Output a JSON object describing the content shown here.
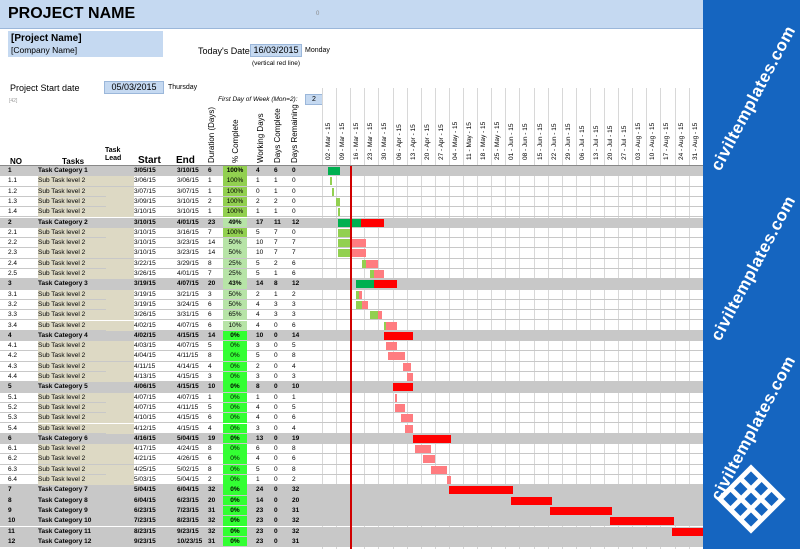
{
  "header": {
    "title": "PROJECT NAME",
    "zero": "0"
  },
  "project": {
    "name": "[Project Name]",
    "company": "[Company Name]"
  },
  "today": {
    "label": "Today's Date:",
    "value": "16/03/2015",
    "day": "Monday",
    "note": "(vertical red line)"
  },
  "start": {
    "label": "Project Start date",
    "value": "05/03/2015",
    "day": "Thursday",
    "note": "[42]"
  },
  "week": {
    "label": "First Day of Week (Mon=2):",
    "value": "2"
  },
  "columns": {
    "no": "NO",
    "tasks": "Tasks",
    "lead": "Task Lead",
    "start": "Start",
    "end": "End",
    "duration": "Duration (Days)",
    "complete": "% Complete",
    "working": "Working Days",
    "dcomplete": "Days Complete",
    "dremaining": "Days Remaining"
  },
  "dates": [
    "02 - Mar - 15",
    "09 - Mar - 15",
    "16 - Mar - 15",
    "23 - Mar - 15",
    "30 - Mar - 15",
    "06 - Apr - 15",
    "13 - Apr - 15",
    "20 - Apr - 15",
    "27 - Apr - 15",
    "04 - May - 15",
    "11 - May - 15",
    "18 - May - 15",
    "25 - May - 15",
    "01 - Jun - 15",
    "08 - Jun - 15",
    "15 - Jun - 15",
    "22 - Jun - 15",
    "29 - Jun - 15",
    "06 - Jul - 15",
    "13 - Jul - 15",
    "20 - Jul - 15",
    "27 - Jul - 15",
    "03 - Aug - 15",
    "10 - Aug - 15",
    "17 - Aug - 15",
    "24 - Aug - 15",
    "31 - Aug - 15"
  ],
  "colors": {
    "done": "#00b050",
    "remain": "#ff0000",
    "done_light": "#92d050",
    "remain_light": "#ff7c80",
    "header": "#c5d9f1",
    "brand": "#1565c0"
  },
  "brand": {
    "watermark": "civiltemplates.com",
    "logo": "grid-logo-icon"
  },
  "rows": [
    {
      "no": "1",
      "task": "Task Category 1",
      "start": "3/05/15",
      "end": "3/10/15",
      "dur": "6",
      "pct": "100%",
      "work": "4",
      "dc": "6",
      "dr": "0",
      "cat": true,
      "s": 3,
      "d": 6,
      "p": 1
    },
    {
      "no": "1.1",
      "task": "Sub Task level 2",
      "start": "3/06/15",
      "end": "3/06/15",
      "dur": "1",
      "pct": "100%",
      "work": "1",
      "dc": "1",
      "dr": "0",
      "s": 4,
      "d": 1,
      "p": 1
    },
    {
      "no": "1.2",
      "task": "Sub Task level 2",
      "start": "3/07/15",
      "end": "3/07/15",
      "dur": "1",
      "pct": "100%",
      "work": "0",
      "dc": "1",
      "dr": "0",
      "s": 5,
      "d": 1,
      "p": 1
    },
    {
      "no": "1.3",
      "task": "Sub Task level 2",
      "start": "3/09/15",
      "end": "3/10/15",
      "dur": "2",
      "pct": "100%",
      "work": "2",
      "dc": "2",
      "dr": "0",
      "s": 7,
      "d": 2,
      "p": 1
    },
    {
      "no": "1.4",
      "task": "Sub Task level 2",
      "start": "3/10/15",
      "end": "3/10/15",
      "dur": "1",
      "pct": "100%",
      "work": "1",
      "dc": "1",
      "dr": "0",
      "s": 8,
      "d": 1,
      "p": 1
    },
    {
      "no": "2",
      "task": "Task Category 2",
      "start": "3/10/15",
      "end": "4/01/15",
      "dur": "23",
      "pct": "49%",
      "work": "17",
      "dc": "11",
      "dr": "12",
      "cat": true,
      "s": 8,
      "d": 23,
      "p": 0.49
    },
    {
      "no": "2.1",
      "task": "Sub Task level 2",
      "start": "3/10/15",
      "end": "3/16/15",
      "dur": "7",
      "pct": "100%",
      "work": "5",
      "dc": "7",
      "dr": "0",
      "s": 8,
      "d": 7,
      "p": 1
    },
    {
      "no": "2.2",
      "task": "Sub Task level 2",
      "start": "3/10/15",
      "end": "3/23/15",
      "dur": "14",
      "pct": "50%",
      "work": "10",
      "dc": "7",
      "dr": "7",
      "s": 8,
      "d": 14,
      "p": 0.5
    },
    {
      "no": "2.3",
      "task": "Sub Task level 2",
      "start": "3/10/15",
      "end": "3/23/15",
      "dur": "14",
      "pct": "50%",
      "work": "10",
      "dc": "7",
      "dr": "7",
      "s": 8,
      "d": 14,
      "p": 0.5
    },
    {
      "no": "2.4",
      "task": "Sub Task level 2",
      "start": "3/22/15",
      "end": "3/29/15",
      "dur": "8",
      "pct": "25%",
      "work": "5",
      "dc": "2",
      "dr": "6",
      "s": 20,
      "d": 8,
      "p": 0.25
    },
    {
      "no": "2.5",
      "task": "Sub Task level 2",
      "start": "3/26/15",
      "end": "4/01/15",
      "dur": "7",
      "pct": "25%",
      "work": "5",
      "dc": "1",
      "dr": "6",
      "s": 24,
      "d": 7,
      "p": 0.25
    },
    {
      "no": "3",
      "task": "Task Category 3",
      "start": "3/19/15",
      "end": "4/07/15",
      "dur": "20",
      "pct": "43%",
      "work": "14",
      "dc": "8",
      "dr": "12",
      "cat": true,
      "s": 17,
      "d": 20,
      "p": 0.43
    },
    {
      "no": "3.1",
      "task": "Sub Task level 2",
      "start": "3/19/15",
      "end": "3/21/15",
      "dur": "3",
      "pct": "50%",
      "work": "2",
      "dc": "1",
      "dr": "2",
      "s": 17,
      "d": 3,
      "p": 0.5
    },
    {
      "no": "3.2",
      "task": "Sub Task level 2",
      "start": "3/19/15",
      "end": "3/24/15",
      "dur": "6",
      "pct": "50%",
      "work": "4",
      "dc": "3",
      "dr": "3",
      "s": 17,
      "d": 6,
      "p": 0.5
    },
    {
      "no": "3.3",
      "task": "Sub Task level 2",
      "start": "3/26/15",
      "end": "3/31/15",
      "dur": "6",
      "pct": "65%",
      "work": "4",
      "dc": "3",
      "dr": "3",
      "s": 24,
      "d": 6,
      "p": 0.65
    },
    {
      "no": "3.4",
      "task": "Sub Task level 2",
      "start": "4/02/15",
      "end": "4/07/15",
      "dur": "6",
      "pct": "10%",
      "work": "4",
      "dc": "0",
      "dr": "6",
      "s": 31,
      "d": 6,
      "p": 0.1
    },
    {
      "no": "4",
      "task": "Task Category 4",
      "start": "4/02/15",
      "end": "4/15/15",
      "dur": "14",
      "pct": "0%",
      "work": "10",
      "dc": "0",
      "dr": "14",
      "cat": true,
      "s": 31,
      "d": 14,
      "p": 0
    },
    {
      "no": "4.1",
      "task": "Sub Task level 2",
      "start": "4/03/15",
      "end": "4/07/15",
      "dur": "5",
      "pct": "0%",
      "work": "3",
      "dc": "0",
      "dr": "5",
      "s": 32,
      "d": 5,
      "p": 0
    },
    {
      "no": "4.2",
      "task": "Sub Task level 2",
      "start": "4/04/15",
      "end": "4/11/15",
      "dur": "8",
      "pct": "0%",
      "work": "5",
      "dc": "0",
      "dr": "8",
      "s": 33,
      "d": 8,
      "p": 0
    },
    {
      "no": "4.3",
      "task": "Sub Task level 2",
      "start": "4/11/15",
      "end": "4/14/15",
      "dur": "4",
      "pct": "0%",
      "work": "2",
      "dc": "0",
      "dr": "4",
      "s": 40,
      "d": 4,
      "p": 0
    },
    {
      "no": "4.4",
      "task": "Sub Task level 2",
      "start": "4/13/15",
      "end": "4/15/15",
      "dur": "3",
      "pct": "0%",
      "work": "3",
      "dc": "0",
      "dr": "3",
      "s": 42,
      "d": 3,
      "p": 0
    },
    {
      "no": "5",
      "task": "Task Category 5",
      "start": "4/06/15",
      "end": "4/15/15",
      "dur": "10",
      "pct": "0%",
      "work": "8",
      "dc": "0",
      "dr": "10",
      "cat": true,
      "s": 35,
      "d": 10,
      "p": 0
    },
    {
      "no": "5.1",
      "task": "Sub Task level 2",
      "start": "4/07/15",
      "end": "4/07/15",
      "dur": "1",
      "pct": "0%",
      "work": "1",
      "dc": "0",
      "dr": "1",
      "s": 36,
      "d": 1,
      "p": 0
    },
    {
      "no": "5.2",
      "task": "Sub Task level 2",
      "start": "4/07/15",
      "end": "4/11/15",
      "dur": "5",
      "pct": "0%",
      "work": "4",
      "dc": "0",
      "dr": "5",
      "s": 36,
      "d": 5,
      "p": 0
    },
    {
      "no": "5.3",
      "task": "Sub Task level 2",
      "start": "4/10/15",
      "end": "4/15/15",
      "dur": "6",
      "pct": "0%",
      "work": "4",
      "dc": "0",
      "dr": "6",
      "s": 39,
      "d": 6,
      "p": 0
    },
    {
      "no": "5.4",
      "task": "Sub Task level 2",
      "start": "4/12/15",
      "end": "4/15/15",
      "dur": "4",
      "pct": "0%",
      "work": "3",
      "dc": "0",
      "dr": "4",
      "s": 41,
      "d": 4,
      "p": 0
    },
    {
      "no": "6",
      "task": "Task Category 6",
      "start": "4/16/15",
      "end": "5/04/15",
      "dur": "19",
      "pct": "0%",
      "work": "13",
      "dc": "0",
      "dr": "19",
      "cat": true,
      "s": 45,
      "d": 19,
      "p": 0
    },
    {
      "no": "6.1",
      "task": "Sub Task level 2",
      "start": "4/17/15",
      "end": "4/24/15",
      "dur": "8",
      "pct": "0%",
      "work": "6",
      "dc": "0",
      "dr": "8",
      "s": 46,
      "d": 8,
      "p": 0
    },
    {
      "no": "6.2",
      "task": "Sub Task level 2",
      "start": "4/21/15",
      "end": "4/26/15",
      "dur": "6",
      "pct": "0%",
      "work": "4",
      "dc": "0",
      "dr": "6",
      "s": 50,
      "d": 6,
      "p": 0
    },
    {
      "no": "6.3",
      "task": "Sub Task level 2",
      "start": "4/25/15",
      "end": "5/02/15",
      "dur": "8",
      "pct": "0%",
      "work": "5",
      "dc": "0",
      "dr": "8",
      "s": 54,
      "d": 8,
      "p": 0
    },
    {
      "no": "6.4",
      "task": "Sub Task level 2",
      "start": "5/03/15",
      "end": "5/04/15",
      "dur": "2",
      "pct": "0%",
      "work": "1",
      "dc": "0",
      "dr": "2",
      "s": 62,
      "d": 2,
      "p": 0
    },
    {
      "no": "7",
      "task": "Task Category 7",
      "start": "5/04/15",
      "end": "6/04/15",
      "dur": "32",
      "pct": "0%",
      "work": "24",
      "dc": "0",
      "dr": "32",
      "cat": true,
      "s": 63,
      "d": 32,
      "p": 0
    },
    {
      "no": "8",
      "task": "Task Category 8",
      "start": "6/04/15",
      "end": "6/23/15",
      "dur": "20",
      "pct": "0%",
      "work": "14",
      "dc": "0",
      "dr": "20",
      "cat": true,
      "s": 94,
      "d": 20,
      "p": 0
    },
    {
      "no": "9",
      "task": "Task Category 9",
      "start": "6/23/15",
      "end": "7/23/15",
      "dur": "31",
      "pct": "0%",
      "work": "23",
      "dc": "0",
      "dr": "31",
      "cat": true,
      "s": 113,
      "d": 31,
      "p": 0
    },
    {
      "no": "10",
      "task": "Task Category 10",
      "start": "7/23/15",
      "end": "8/23/15",
      "dur": "32",
      "pct": "0%",
      "work": "23",
      "dc": "0",
      "dr": "32",
      "cat": true,
      "s": 143,
      "d": 32,
      "p": 0
    },
    {
      "no": "11",
      "task": "Task Category 11",
      "start": "8/23/15",
      "end": "9/23/15",
      "dur": "32",
      "pct": "0%",
      "work": "23",
      "dc": "0",
      "dr": "32",
      "cat": true,
      "s": 174,
      "d": 32,
      "p": 0
    },
    {
      "no": "12",
      "task": "Task Category 12",
      "start": "9/23/15",
      "end": "10/23/15",
      "dur": "31",
      "pct": "0%",
      "work": "23",
      "dc": "0",
      "dr": "31",
      "cat": true,
      "s": 205,
      "d": 31,
      "p": 0
    }
  ]
}
